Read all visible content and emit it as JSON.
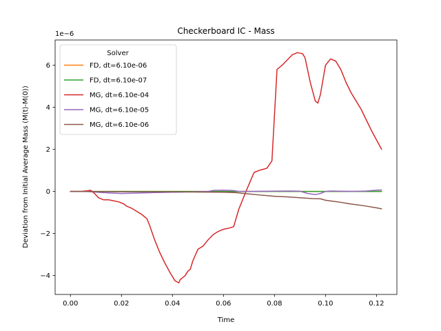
{
  "chart_data": {
    "type": "line",
    "title": "Checkerboard IC - Mass",
    "xlabel": "Time",
    "ylabel": "Deviation from Initial Average Mass (M(t)-M(0))",
    "y_offset_text": "1e−6",
    "xlim": [
      -0.006,
      0.128
    ],
    "ylim": [
      -4.9,
      7.2
    ],
    "x_ticks": [
      0.0,
      0.02,
      0.04,
      0.06,
      0.08,
      0.1,
      0.12
    ],
    "x_tick_labels": [
      "0.00",
      "0.02",
      "0.04",
      "0.06",
      "0.08",
      "0.10",
      "0.12"
    ],
    "y_ticks": [
      -4,
      -2,
      0,
      2,
      4,
      6
    ],
    "y_tick_labels": [
      "−4",
      "−2",
      "0",
      "2",
      "4",
      "6"
    ],
    "grid": false,
    "legend": {
      "title": "Solver",
      "placement": "top-left"
    },
    "series": [
      {
        "name": "FD, dt=6.10e-06",
        "color": "#ff7f0e",
        "x": [
          0.0,
          0.02,
          0.04,
          0.06,
          0.08,
          0.1,
          0.122
        ],
        "y": [
          0.0,
          0.0,
          0.0,
          0.0,
          0.0,
          0.0,
          0.0
        ]
      },
      {
        "name": "FD, dt=6.10e-07",
        "color": "#2ca02c",
        "x": [
          0.0,
          0.02,
          0.04,
          0.06,
          0.08,
          0.1,
          0.122
        ],
        "y": [
          0.0,
          0.0,
          0.0,
          0.0,
          0.0,
          0.0,
          0.0
        ]
      },
      {
        "name": "MG, dt=6.10e-04",
        "color": "#d62728",
        "x": [
          0.0,
          0.004,
          0.008,
          0.0095,
          0.011,
          0.013,
          0.015,
          0.017,
          0.019,
          0.021,
          0.022,
          0.024,
          0.026,
          0.028,
          0.03,
          0.031,
          0.033,
          0.035,
          0.037,
          0.039,
          0.041,
          0.0425,
          0.043,
          0.045,
          0.046,
          0.047,
          0.048,
          0.05,
          0.052,
          0.054,
          0.056,
          0.058,
          0.06,
          0.062,
          0.064,
          0.066,
          0.069,
          0.072,
          0.074,
          0.077,
          0.079,
          0.081,
          0.083,
          0.085,
          0.087,
          0.089,
          0.091,
          0.092,
          0.094,
          0.096,
          0.097,
          0.098,
          0.1,
          0.102,
          0.104,
          0.106,
          0.108,
          0.11,
          0.112,
          0.114,
          0.116,
          0.118,
          0.12,
          0.122
        ],
        "y": [
          0.0,
          0.0,
          0.05,
          -0.1,
          -0.3,
          -0.4,
          -0.4,
          -0.45,
          -0.5,
          -0.6,
          -0.7,
          -0.8,
          -0.95,
          -1.1,
          -1.3,
          -1.6,
          -2.3,
          -2.9,
          -3.4,
          -3.85,
          -4.25,
          -4.35,
          -4.2,
          -4.0,
          -3.8,
          -3.7,
          -3.3,
          -2.75,
          -2.6,
          -2.3,
          -2.05,
          -1.9,
          -1.8,
          -1.75,
          -1.68,
          -0.85,
          0.05,
          0.9,
          1.0,
          1.1,
          1.45,
          5.8,
          6.0,
          6.25,
          6.5,
          6.6,
          6.55,
          6.35,
          5.2,
          4.3,
          4.2,
          4.6,
          6.0,
          6.3,
          6.2,
          5.8,
          5.2,
          4.7,
          4.3,
          3.9,
          3.4,
          2.9,
          2.45,
          2.0
        ]
      },
      {
        "name": "MG, dt=6.10e-05",
        "color": "#9467bd",
        "x": [
          0.0,
          0.006,
          0.012,
          0.016,
          0.02,
          0.026,
          0.032,
          0.04,
          0.048,
          0.054,
          0.056,
          0.06,
          0.064,
          0.066,
          0.07,
          0.078,
          0.086,
          0.09,
          0.093,
          0.096,
          0.098,
          0.1,
          0.102,
          0.11,
          0.116,
          0.12,
          0.122
        ],
        "y": [
          0.0,
          0.0,
          -0.05,
          -0.08,
          -0.1,
          -0.08,
          -0.06,
          -0.04,
          -0.02,
          0.0,
          0.05,
          0.06,
          0.04,
          0.0,
          0.0,
          0.01,
          0.02,
          0.01,
          -0.1,
          -0.15,
          -0.1,
          0.0,
          0.02,
          0.0,
          0.02,
          0.06,
          0.07
        ]
      },
      {
        "name": "MG, dt=6.10e-06",
        "color": "#8c564b",
        "x": [
          0.0,
          0.01,
          0.02,
          0.03,
          0.04,
          0.05,
          0.06,
          0.065,
          0.07,
          0.075,
          0.08,
          0.085,
          0.09,
          0.095,
          0.098,
          0.1,
          0.105,
          0.11,
          0.115,
          0.12,
          0.122
        ],
        "y": [
          0.0,
          -0.01,
          -0.02,
          -0.02,
          -0.02,
          -0.03,
          -0.04,
          -0.06,
          -0.12,
          -0.18,
          -0.23,
          -0.26,
          -0.3,
          -0.34,
          -0.35,
          -0.42,
          -0.5,
          -0.6,
          -0.68,
          -0.78,
          -0.83
        ]
      }
    ]
  }
}
